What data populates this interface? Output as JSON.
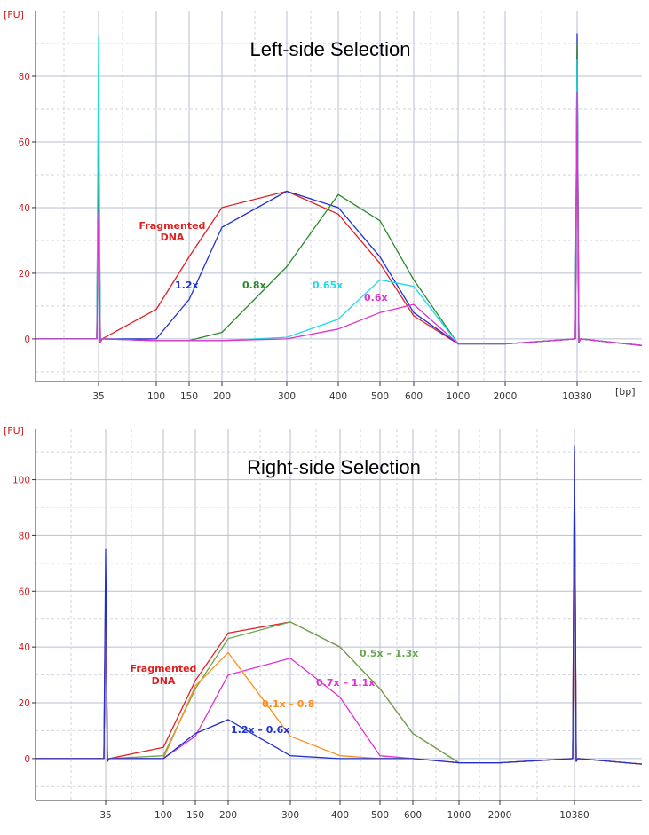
{
  "chart_data": [
    {
      "type": "line",
      "title": "Left-side Selection",
      "y_unit_label": "[FU]",
      "x_unit_label": "[bp]",
      "ylim": [
        -13,
        100
      ],
      "y_ticks": [
        0,
        20,
        40,
        60,
        80
      ],
      "x_tick_labels": [
        "35",
        "100",
        "150",
        "200",
        "300",
        "400",
        "500",
        "600",
        "1000",
        "2000",
        "10380"
      ],
      "grid": "on",
      "legend": "none",
      "series": [
        {
          "name": "Fragmented DNA",
          "color": "#e02020",
          "x": [
            "35",
            "100",
            "150",
            "200",
            "300",
            "400",
            "500",
            "600",
            "1000",
            "2000",
            "10380"
          ],
          "y": [
            75,
            9,
            25,
            40,
            45,
            38,
            23,
            7,
            -1.5,
            -1.5,
            78
          ]
        },
        {
          "name": "1.2x",
          "color": "#2030d0",
          "x": [
            "35",
            "100",
            "150",
            "200",
            "300",
            "400",
            "500",
            "600",
            "1000",
            "2000",
            "10380"
          ],
          "y": [
            60,
            0,
            12,
            34,
            45,
            40,
            25,
            8,
            -1.5,
            -1.5,
            93
          ]
        },
        {
          "name": "0.8x",
          "color": "#2a8a2a",
          "x": [
            "35",
            "100",
            "150",
            "200",
            "300",
            "400",
            "500",
            "600",
            "1000",
            "2000",
            "10380"
          ],
          "y": [
            68,
            -0.5,
            -0.5,
            2,
            22,
            44,
            36,
            18,
            -1.5,
            -1.5,
            90
          ]
        },
        {
          "name": "0.65x",
          "color": "#20d8e8",
          "x": [
            "35",
            "100",
            "150",
            "200",
            "300",
            "400",
            "500",
            "600",
            "1000",
            "2000",
            "10380"
          ],
          "y": [
            92,
            -0.5,
            -0.5,
            -0.5,
            0.5,
            6,
            18,
            16,
            -1.5,
            -1.5,
            85
          ]
        },
        {
          "name": "0.6x",
          "color": "#e030d0",
          "x": [
            "35",
            "100",
            "150",
            "200",
            "300",
            "400",
            "500",
            "600",
            "1000",
            "2000",
            "10380"
          ],
          "y": [
            38,
            -0.5,
            -0.5,
            -0.5,
            0,
            3,
            8,
            10.5,
            -1.5,
            -1.5,
            75
          ]
        }
      ],
      "annotations": [
        {
          "text": "Fragmented",
          "color": "#e02020"
        },
        {
          "text": "DNA",
          "color": "#e02020"
        },
        {
          "text": "1.2x",
          "color": "#2030d0"
        },
        {
          "text": "0.8x",
          "color": "#2a8a2a"
        },
        {
          "text": "0.65x",
          "color": "#20d8e8"
        },
        {
          "text": "0.6x",
          "color": "#e030d0"
        }
      ]
    },
    {
      "type": "line",
      "title": "Right-side Selection",
      "y_unit_label": "[FU]",
      "x_unit_label": "",
      "ylim": [
        -15,
        118
      ],
      "y_ticks": [
        0,
        20,
        40,
        60,
        80,
        100
      ],
      "x_tick_labels": [
        "35",
        "100",
        "150",
        "200",
        "300",
        "400",
        "500",
        "600",
        "1000",
        "2000",
        "10380"
      ],
      "grid": "on",
      "legend": "none",
      "series": [
        {
          "name": "Fragmented DNA",
          "color": "#e02020",
          "x": [
            "35",
            "100",
            "150",
            "200",
            "300",
            "400",
            "500",
            "600",
            "1000",
            "2000",
            "10380"
          ],
          "y": [
            62,
            4,
            28,
            45,
            49,
            40,
            25,
            9,
            -1.5,
            -1.5,
            110
          ]
        },
        {
          "name": "0.5x – 1.3x",
          "color": "#6aa84f",
          "x": [
            "35",
            "100",
            "150",
            "200",
            "300",
            "400",
            "500",
            "600",
            "1000",
            "2000",
            "10380"
          ],
          "y": [
            60,
            1,
            25,
            43,
            49,
            40,
            25,
            9,
            -1.5,
            -1.5,
            100
          ]
        },
        {
          "name": "0.7x – 1.1x",
          "color": "#e030d0",
          "x": [
            "35",
            "100",
            "150",
            "200",
            "300",
            "400",
            "500",
            "600",
            "1000",
            "2000",
            "10380"
          ],
          "y": [
            55,
            0,
            8,
            30,
            36,
            22,
            1,
            0,
            -1.5,
            -1.5,
            95
          ]
        },
        {
          "name": "0.1x – 0.8",
          "color": "#ff8c1a",
          "x": [
            "35",
            "100",
            "150",
            "200",
            "300",
            "400",
            "500",
            "600",
            "1000",
            "2000",
            "10380"
          ],
          "y": [
            65,
            0,
            26,
            38,
            8,
            1,
            0,
            0,
            -1.5,
            -1.5,
            105
          ]
        },
        {
          "name": "1.2x – 0.6x",
          "color": "#2030d0",
          "x": [
            "35",
            "100",
            "150",
            "200",
            "300",
            "400",
            "500",
            "600",
            "1000",
            "2000",
            "10380"
          ],
          "y": [
            75,
            0,
            9,
            14,
            1,
            0,
            0,
            0,
            -1.5,
            -1.5,
            112
          ]
        }
      ],
      "annotations": [
        {
          "text": "Fragmented",
          "color": "#e02020"
        },
        {
          "text": "DNA",
          "color": "#e02020"
        },
        {
          "text": "0.5x – 1.3x",
          "color": "#6aa84f"
        },
        {
          "text": "0.7x – 1.1x",
          "color": "#e030d0"
        },
        {
          "text": "0.1x – 0.8",
          "color": "#ff8c1a"
        },
        {
          "text": "1.2x – 0.6x",
          "color": "#2030d0"
        }
      ]
    }
  ]
}
